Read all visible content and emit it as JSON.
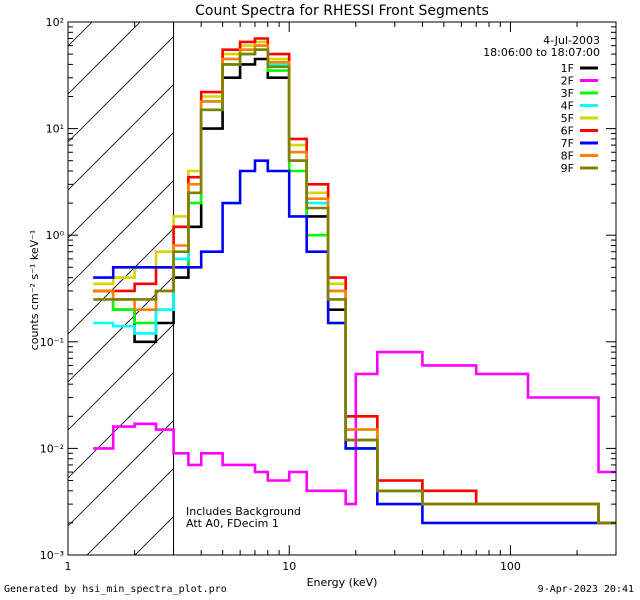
{
  "chart_data": {
    "type": "line",
    "title": "Count Spectra for RHESSI Front Segments",
    "xlabel": "Energy (keV)",
    "ylabel": "counts cm⁻² s⁻¹ keV⁻¹",
    "xscale": "log",
    "yscale": "log",
    "xlim": [
      1,
      300
    ],
    "ylim": [
      0.001,
      100
    ],
    "x_tick_labels": [
      "1",
      "10",
      "100"
    ],
    "y_tick_labels": [
      "10⁻³",
      "10⁻²",
      "10⁻¹",
      "10⁰",
      "10¹",
      "10²"
    ],
    "date": "4-Jul-2003",
    "time_range": "18:06:00 to 18:07:00",
    "annotation": [
      "Includes Background",
      "Att A0, FDecim 1"
    ],
    "shaded_region": [
      1,
      3
    ],
    "legend_position": "top-right",
    "series": [
      {
        "name": "1F",
        "color": "#000000",
        "x": [
          1.3,
          1.6,
          2.0,
          2.5,
          3.0,
          3.5,
          4.0,
          5.0,
          6.0,
          7.0,
          8.0,
          10.0,
          12.0,
          15.0,
          18.0,
          25.0,
          40.0,
          70.0,
          120.0,
          250.0
        ],
        "values": [
          0.3,
          0.2,
          0.1,
          0.15,
          0.4,
          1.2,
          10,
          30,
          40,
          45,
          30,
          5,
          1.5,
          0.2,
          0.012,
          0.004,
          0.003,
          0.003,
          0.003,
          0.002
        ]
      },
      {
        "name": "2F",
        "color": "#ff00ff",
        "x": [
          1.3,
          1.6,
          2.0,
          2.5,
          3.0,
          3.5,
          4.0,
          5.0,
          6.0,
          7.0,
          8.0,
          10.0,
          12.0,
          15.0,
          18.0,
          20.0,
          25.0,
          40.0,
          70.0,
          120.0,
          250.0
        ],
        "values": [
          0.01,
          0.016,
          0.017,
          0.015,
          0.009,
          0.007,
          0.009,
          0.007,
          0.007,
          0.006,
          0.005,
          0.006,
          0.004,
          0.004,
          0.003,
          0.05,
          0.08,
          0.06,
          0.05,
          0.03,
          0.006
        ]
      },
      {
        "name": "3F",
        "color": "#00ff00",
        "x": [
          1.3,
          1.6,
          2.0,
          2.5,
          3.0,
          3.5,
          4.0,
          5.0,
          6.0,
          7.0,
          8.0,
          10.0,
          12.0,
          15.0,
          18.0,
          25.0,
          40.0,
          70.0,
          120.0,
          250.0
        ],
        "values": [
          0.3,
          0.2,
          0.15,
          0.2,
          0.5,
          2,
          15,
          40,
          50,
          55,
          35,
          4,
          1.0,
          0.15,
          0.01,
          0.004,
          0.003,
          0.003,
          0.003,
          0.002
        ]
      },
      {
        "name": "4F",
        "color": "#00ffff",
        "x": [
          1.3,
          1.6,
          2.0,
          2.5,
          3.0,
          3.5,
          4.0,
          5.0,
          6.0,
          7.0,
          8.0,
          10.0,
          12.0,
          15.0,
          18.0,
          25.0,
          40.0,
          70.0,
          120.0,
          250.0
        ],
        "values": [
          0.15,
          0.14,
          0.12,
          0.2,
          0.6,
          2.5,
          18,
          45,
          55,
          60,
          40,
          6,
          2.0,
          0.3,
          0.015,
          0.004,
          0.003,
          0.003,
          0.003,
          0.002
        ]
      },
      {
        "name": "5F",
        "color": "#d6d600",
        "x": [
          1.3,
          1.6,
          2.0,
          2.5,
          3.0,
          3.5,
          4.0,
          5.0,
          6.0,
          7.0,
          8.0,
          10.0,
          12.0,
          15.0,
          18.0,
          25.0,
          40.0,
          70.0,
          120.0,
          250.0
        ],
        "values": [
          0.35,
          0.4,
          0.5,
          0.7,
          1.5,
          4,
          20,
          50,
          60,
          65,
          45,
          7,
          2.5,
          0.35,
          0.02,
          0.005,
          0.004,
          0.003,
          0.003,
          0.002
        ]
      },
      {
        "name": "6F",
        "color": "#ff0000",
        "x": [
          1.3,
          1.6,
          2.0,
          2.5,
          3.0,
          3.5,
          4.0,
          5.0,
          6.0,
          7.0,
          8.0,
          10.0,
          12.0,
          15.0,
          18.0,
          25.0,
          40.0,
          70.0,
          120.0,
          250.0
        ],
        "values": [
          0.3,
          0.3,
          0.35,
          0.5,
          1.2,
          3.5,
          22,
          55,
          65,
          70,
          50,
          8,
          3.0,
          0.4,
          0.02,
          0.005,
          0.004,
          0.003,
          0.003,
          0.002
        ]
      },
      {
        "name": "7F",
        "color": "#0000ff",
        "x": [
          1.3,
          1.6,
          2.0,
          2.5,
          3.0,
          3.5,
          4.0,
          5.0,
          6.0,
          7.0,
          8.0,
          10.0,
          12.0,
          15.0,
          18.0,
          25.0,
          40.0,
          70.0,
          120.0,
          250.0
        ],
        "values": [
          0.4,
          0.5,
          0.5,
          0.5,
          0.5,
          0.5,
          0.7,
          2.0,
          4.0,
          5.0,
          4.0,
          1.5,
          0.7,
          0.15,
          0.01,
          0.003,
          0.002,
          0.002,
          0.002,
          0.002
        ]
      },
      {
        "name": "8F",
        "color": "#ff8000",
        "x": [
          1.3,
          1.6,
          2.0,
          2.5,
          3.0,
          3.5,
          4.0,
          5.0,
          6.0,
          7.0,
          8.0,
          10.0,
          12.0,
          15.0,
          18.0,
          25.0,
          40.0,
          70.0,
          120.0,
          250.0
        ],
        "values": [
          0.3,
          0.25,
          0.2,
          0.3,
          0.8,
          3,
          18,
          45,
          55,
          60,
          42,
          6,
          2.2,
          0.3,
          0.015,
          0.004,
          0.003,
          0.003,
          0.003,
          0.002
        ]
      },
      {
        "name": "9F",
        "color": "#808000",
        "x": [
          1.3,
          1.6,
          2.0,
          2.5,
          3.0,
          3.5,
          4.0,
          5.0,
          6.0,
          7.0,
          8.0,
          10.0,
          12.0,
          15.0,
          18.0,
          25.0,
          40.0,
          70.0,
          120.0,
          250.0
        ],
        "values": [
          0.25,
          0.25,
          0.25,
          0.3,
          0.7,
          2.5,
          15,
          40,
          50,
          55,
          38,
          5,
          1.8,
          0.25,
          0.012,
          0.004,
          0.003,
          0.003,
          0.003,
          0.002
        ]
      }
    ]
  },
  "footer": {
    "left": "Generated by hsi_min_spectra_plot.pro",
    "right": "9-Apr-2023 20:41"
  }
}
